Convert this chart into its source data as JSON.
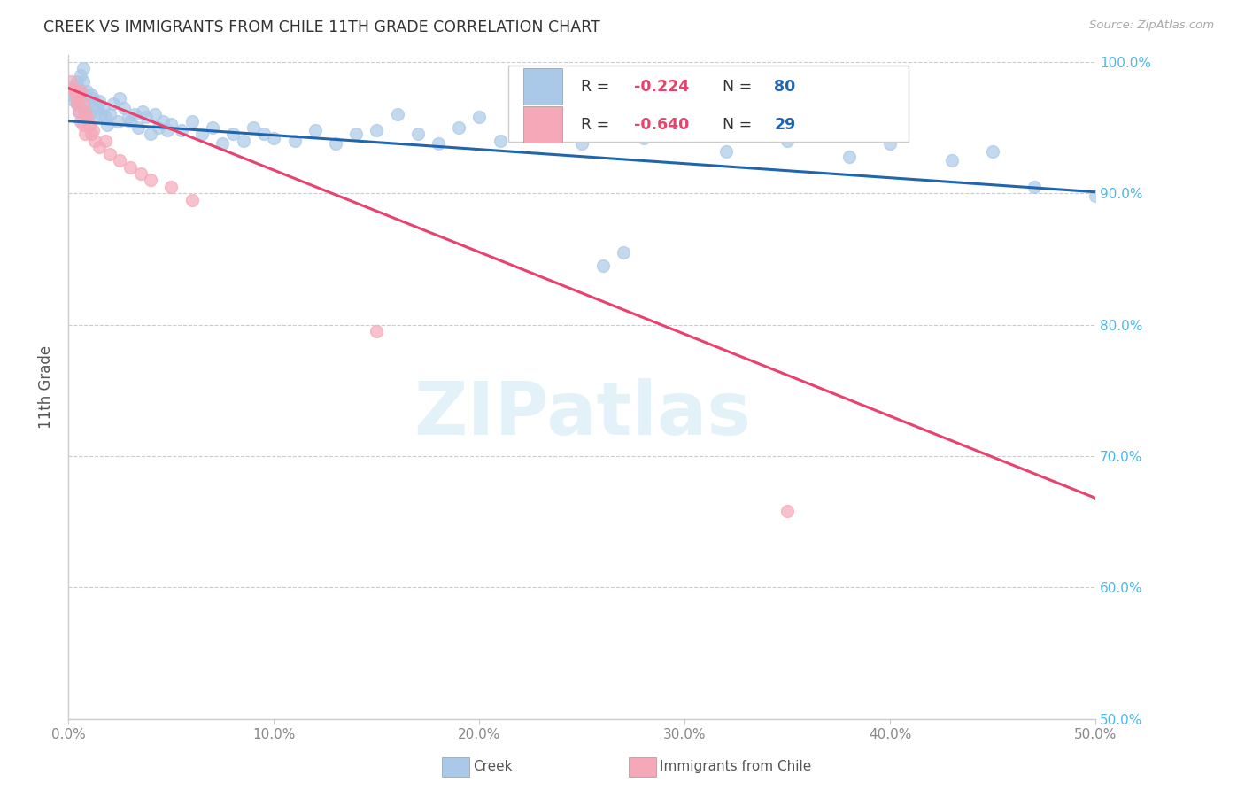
{
  "title": "CREEK VS IMMIGRANTS FROM CHILE 11TH GRADE CORRELATION CHART",
  "source": "Source: ZipAtlas.com",
  "ylabel": "11th Grade",
  "watermark": "ZIPatlas",
  "xmin": 0.0,
  "xmax": 0.5,
  "ymin": 0.5,
  "ymax": 1.005,
  "yticks": [
    0.5,
    0.6,
    0.7,
    0.8,
    0.9,
    1.0
  ],
  "ytick_labels": [
    "50.0%",
    "60.0%",
    "70.0%",
    "80.0%",
    "90.0%",
    "100.0%"
  ],
  "xticks": [
    0.0,
    0.1,
    0.2,
    0.3,
    0.4,
    0.5
  ],
  "xtick_labels": [
    "0.0%",
    "10.0%",
    "20.0%",
    "30.0%",
    "40.0%",
    "50.0%"
  ],
  "creek_R": "-0.224",
  "creek_N": "80",
  "chile_R": "-0.640",
  "chile_N": "29",
  "creek_color": "#aac9e8",
  "creek_edge_color": "#aac9e8",
  "creek_line_color": "#2166ac",
  "chile_color": "#f4a8b8",
  "chile_edge_color": "#f4a8b8",
  "chile_line_color": "#e8436e",
  "R_color": "#e8436e",
  "N_color": "#2166ac",
  "grid_color": "#cccccc",
  "bg_color": "#ffffff",
  "title_color": "#333333",
  "ylabel_color": "#555555",
  "tick_color": "#888888",
  "right_tick_color": "#4db8e8",
  "source_color": "#aaaaaa",
  "marker_size": 100,
  "creek_line_x0": 0.0,
  "creek_line_x1": 0.5,
  "creek_line_y0": 0.955,
  "creek_line_y1": 0.901,
  "chile_line_x0": 0.0,
  "chile_line_x1": 0.5,
  "chile_line_y0": 0.98,
  "chile_line_y1": 0.668,
  "creek_x": [
    0.001,
    0.002,
    0.003,
    0.003,
    0.004,
    0.004,
    0.005,
    0.005,
    0.006,
    0.006,
    0.007,
    0.007,
    0.008,
    0.008,
    0.009,
    0.01,
    0.01,
    0.011,
    0.012,
    0.013,
    0.013,
    0.014,
    0.015,
    0.016,
    0.017,
    0.018,
    0.019,
    0.02,
    0.022,
    0.024,
    0.025,
    0.027,
    0.029,
    0.03,
    0.032,
    0.034,
    0.036,
    0.038,
    0.04,
    0.042,
    0.044,
    0.046,
    0.048,
    0.05,
    0.055,
    0.06,
    0.065,
    0.07,
    0.075,
    0.08,
    0.085,
    0.09,
    0.095,
    0.1,
    0.11,
    0.12,
    0.13,
    0.14,
    0.15,
    0.16,
    0.17,
    0.18,
    0.19,
    0.2,
    0.21,
    0.22,
    0.23,
    0.25,
    0.26,
    0.27,
    0.28,
    0.3,
    0.32,
    0.35,
    0.38,
    0.4,
    0.43,
    0.45,
    0.47,
    0.5
  ],
  "creek_y": [
    0.975,
    0.978,
    0.982,
    0.97,
    0.968,
    0.985,
    0.98,
    0.962,
    0.975,
    0.99,
    0.995,
    0.985,
    0.975,
    0.962,
    0.978,
    0.97,
    0.96,
    0.975,
    0.972,
    0.968,
    0.958,
    0.965,
    0.97,
    0.96,
    0.965,
    0.958,
    0.952,
    0.96,
    0.968,
    0.955,
    0.972,
    0.965,
    0.958,
    0.955,
    0.96,
    0.95,
    0.962,
    0.958,
    0.945,
    0.96,
    0.95,
    0.955,
    0.948,
    0.953,
    0.948,
    0.955,
    0.945,
    0.95,
    0.938,
    0.945,
    0.94,
    0.95,
    0.945,
    0.942,
    0.94,
    0.948,
    0.938,
    0.945,
    0.948,
    0.96,
    0.945,
    0.938,
    0.95,
    0.958,
    0.94,
    0.955,
    0.945,
    0.938,
    0.845,
    0.855,
    0.942,
    0.945,
    0.932,
    0.94,
    0.928,
    0.938,
    0.925,
    0.932,
    0.905,
    0.898
  ],
  "chile_x": [
    0.001,
    0.002,
    0.003,
    0.004,
    0.004,
    0.005,
    0.005,
    0.006,
    0.006,
    0.007,
    0.007,
    0.008,
    0.008,
    0.009,
    0.01,
    0.011,
    0.012,
    0.013,
    0.015,
    0.018,
    0.02,
    0.025,
    0.03,
    0.035,
    0.04,
    0.05,
    0.06,
    0.15,
    0.35
  ],
  "chile_y": [
    0.985,
    0.98,
    0.978,
    0.972,
    0.968,
    0.975,
    0.962,
    0.978,
    0.955,
    0.968,
    0.952,
    0.962,
    0.945,
    0.958,
    0.952,
    0.945,
    0.948,
    0.94,
    0.935,
    0.94,
    0.93,
    0.925,
    0.92,
    0.915,
    0.91,
    0.905,
    0.895,
    0.795,
    0.658
  ]
}
